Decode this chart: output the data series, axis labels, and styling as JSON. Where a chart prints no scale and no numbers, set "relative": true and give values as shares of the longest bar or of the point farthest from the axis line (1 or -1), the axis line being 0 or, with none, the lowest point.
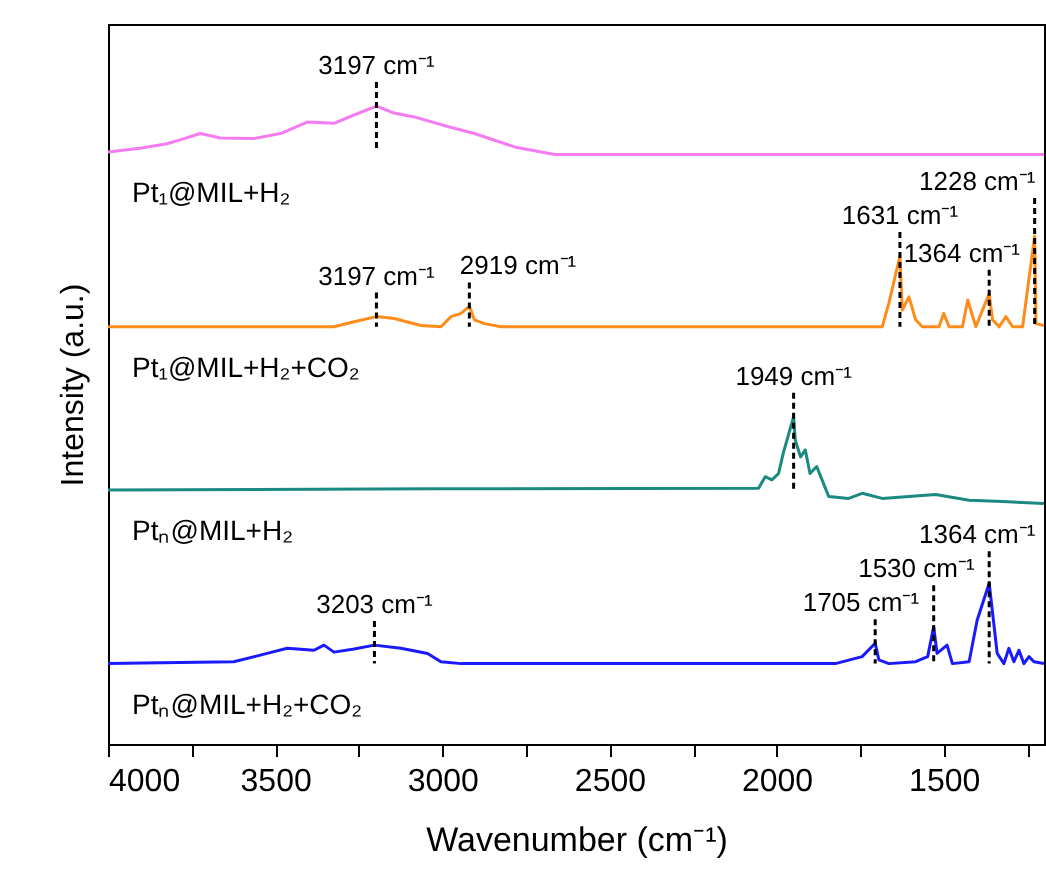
{
  "chart_data": {
    "type": "line",
    "relative": true,
    "xlabel": "Wavenumber (cm⁻¹)",
    "ylabel": "Intensity (a.u.)",
    "xlim": [
      4000,
      1200
    ],
    "xticks": [
      4000,
      {
        "value": 3750,
        "label": null
      },
      3500,
      {
        "value": 3250,
        "label": null
      },
      3000,
      {
        "value": 2750,
        "label": null
      },
      2500,
      {
        "value": 2250,
        "label": null
      },
      2000,
      {
        "value": 1750,
        "label": null
      },
      1500,
      {
        "value": 1250,
        "label": null
      }
    ],
    "series": [
      {
        "name": "Pt₁@MIL+H₂",
        "color": "#f57bf0",
        "x": [
          4000,
          3904,
          3824,
          3784,
          3724,
          3664,
          3564,
          3484,
          3404,
          3324,
          3264,
          3197,
          3144,
          3084,
          2984,
          2904,
          2784,
          2664,
          2024,
          1200
        ],
        "values": [
          0.928,
          0.934,
          0.941,
          0.947,
          0.957,
          0.95,
          0.949,
          0.957,
          0.975,
          0.973,
          0.986,
          1,
          0.989,
          0.983,
          0.968,
          0.957,
          0.936,
          0.924,
          0.924,
          0.924
        ]
      },
      {
        "name": "Pt₁@MIL+H₂+CO₂",
        "color": "#ff8c1a",
        "x": [
          4000,
          3324,
          3264,
          3197,
          3144,
          3064,
          3004,
          2974,
          2944,
          2919,
          2904,
          2874,
          2824,
          2284,
          1684,
          1664,
          1631,
          1624,
          1604,
          1584,
          1564,
          1514,
          1500,
          1484,
          1444,
          1428,
          1404,
          1364,
          1354,
          1334,
          1314,
          1294,
          1264,
          1228,
          1224,
          1200
        ],
        "values": [
          0.654,
          0.654,
          0.662,
          0.67,
          0.667,
          0.656,
          0.654,
          0.67,
          0.675,
          0.686,
          0.665,
          0.659,
          0.654,
          0.654,
          0.654,
          0.691,
          0.765,
          0.68,
          0.701,
          0.665,
          0.654,
          0.654,
          0.675,
          0.654,
          0.654,
          0.696,
          0.654,
          0.706,
          0.665,
          0.654,
          0.67,
          0.654,
          0.654,
          0.796,
          0.659,
          0.656
        ]
      },
      {
        "name": "Ptₙ@MIL+H₂",
        "color": "#1a8a80",
        "x": [
          4000,
          3024,
          2054,
          2034,
          2014,
          1994,
          1980,
          1949,
          1944,
          1928,
          1914,
          1900,
          1880,
          1864,
          1844,
          1784,
          1744,
          1684,
          1524,
          1424,
          1324,
          1200
        ],
        "values": [
          0.398,
          0.4,
          0.401,
          0.419,
          0.414,
          0.424,
          0.456,
          0.513,
          0.476,
          0.45,
          0.461,
          0.424,
          0.435,
          0.414,
          0.388,
          0.385,
          0.393,
          0.385,
          0.391,
          0.382,
          0.38,
          0.377
        ]
      },
      {
        "name": "Ptₙ@MIL+H₂+CO₂",
        "color": "#1a1aff",
        "x": [
          4000,
          3624,
          3524,
          3464,
          3384,
          3354,
          3324,
          3264,
          3203,
          3124,
          3044,
          3004,
          2944,
          1824,
          1744,
          1705,
          1694,
          1664,
          1584,
          1548,
          1530,
          1520,
          1490,
          1474,
          1424,
          1400,
          1364,
          1340,
          1320,
          1305,
          1290,
          1275,
          1260,
          1245,
          1230,
          1200
        ],
        "values": [
          0.126,
          0.129,
          0.142,
          0.15,
          0.147,
          0.155,
          0.144,
          0.149,
          0.155,
          0.15,
          0.142,
          0.129,
          0.126,
          0.126,
          0.137,
          0.158,
          0.132,
          0.126,
          0.129,
          0.137,
          0.184,
          0.142,
          0.155,
          0.126,
          0.129,
          0.194,
          0.252,
          0.142,
          0.126,
          0.15,
          0.129,
          0.147,
          0.126,
          0.137,
          0.129,
          0.126
        ]
      }
    ],
    "annotations": [
      {
        "text": "3197 cm⁻¹",
        "x": 3197,
        "y": 1
      },
      {
        "text": "3197 cm⁻¹",
        "x": 3197,
        "y": 0.67
      },
      {
        "text": "2919 cm⁻¹",
        "x": 2919,
        "y": 0.686
      },
      {
        "text": "1631 cm⁻¹",
        "x": 1631,
        "y": 0.765
      },
      {
        "text": "1364 cm⁻¹",
        "x": 1364,
        "y": 0.706
      },
      {
        "text": "1228 cm⁻¹",
        "x": 1228,
        "y": 0.796
      },
      {
        "text": "1949 cm⁻¹",
        "x": 1949,
        "y": 0.513
      },
      {
        "text": "3203 cm⁻¹",
        "x": 3203,
        "y": 0.155
      },
      {
        "text": "1705 cm⁻¹",
        "x": 1705,
        "y": 0.158
      },
      {
        "text": "1530 cm⁻¹",
        "x": 1530,
        "y": 0.184
      },
      {
        "text": "1364 cm⁻¹",
        "x": 1364,
        "y": 0.252
      }
    ]
  }
}
